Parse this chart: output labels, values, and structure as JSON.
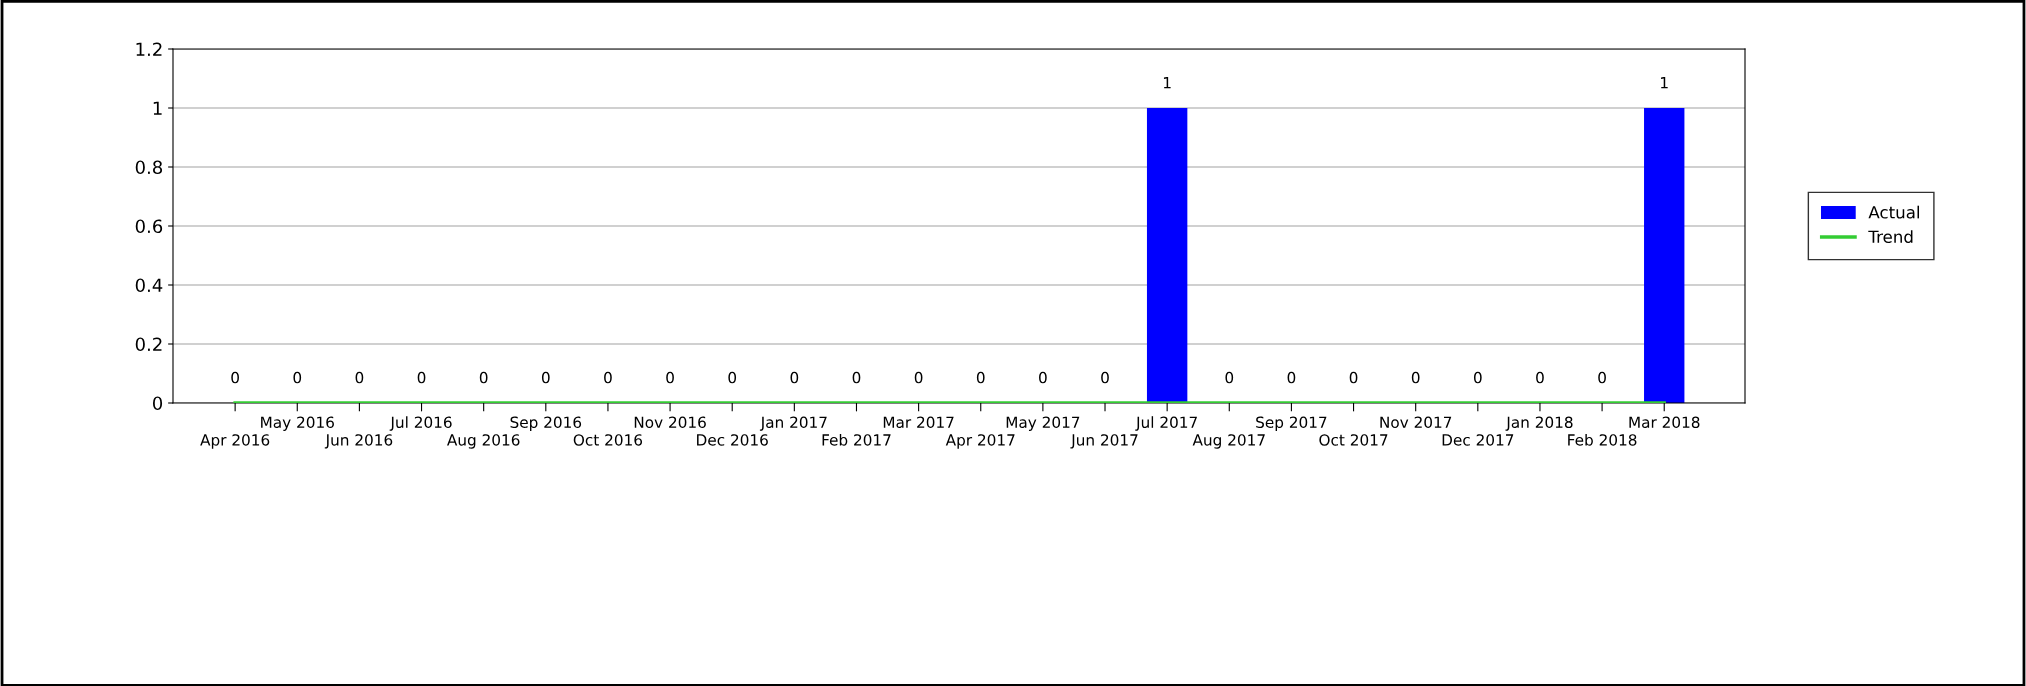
{
  "chart_data": {
    "type": "bar",
    "categories": [
      "Apr 2016",
      "May 2016",
      "Jun 2016",
      "Jul 2016",
      "Aug 2016",
      "Sep 2016",
      "Oct 2016",
      "Nov 2016",
      "Dec 2016",
      "Jan 2017",
      "Feb 2017",
      "Mar 2017",
      "Apr 2017",
      "May 2017",
      "Jun 2017",
      "Jul 2017",
      "Aug 2017",
      "Sep 2017",
      "Oct 2017",
      "Nov 2017",
      "Dec 2017",
      "Jan 2018",
      "Feb 2018",
      "Mar 2018"
    ],
    "series": [
      {
        "name": "Actual",
        "color": "#0000ff",
        "values": [
          0,
          0,
          0,
          0,
          0,
          0,
          0,
          0,
          0,
          0,
          0,
          0,
          0,
          0,
          0,
          1,
          0,
          0,
          0,
          0,
          0,
          0,
          0,
          1
        ],
        "value_labels": [
          "0",
          "0",
          "0",
          "0",
          "0",
          "0",
          "0",
          "0",
          "0",
          "0",
          "0",
          "0",
          "0",
          "0",
          "0",
          "1",
          "0",
          "0",
          "0",
          "0",
          "0",
          "0",
          "0",
          "1"
        ]
      },
      {
        "name": "Trend",
        "type": "line",
        "color": "#33cc33",
        "values": [
          0,
          0,
          0,
          0,
          0,
          0,
          0,
          0,
          0,
          0,
          0,
          0,
          0,
          0,
          0,
          0,
          0,
          0,
          0,
          0,
          0,
          0,
          0,
          0
        ]
      }
    ],
    "ylim": [
      0,
      1.2
    ],
    "yticks": [
      0,
      0.2,
      0.4,
      0.6,
      0.8,
      1,
      1.2
    ],
    "grid": "y",
    "legend": "right"
  }
}
